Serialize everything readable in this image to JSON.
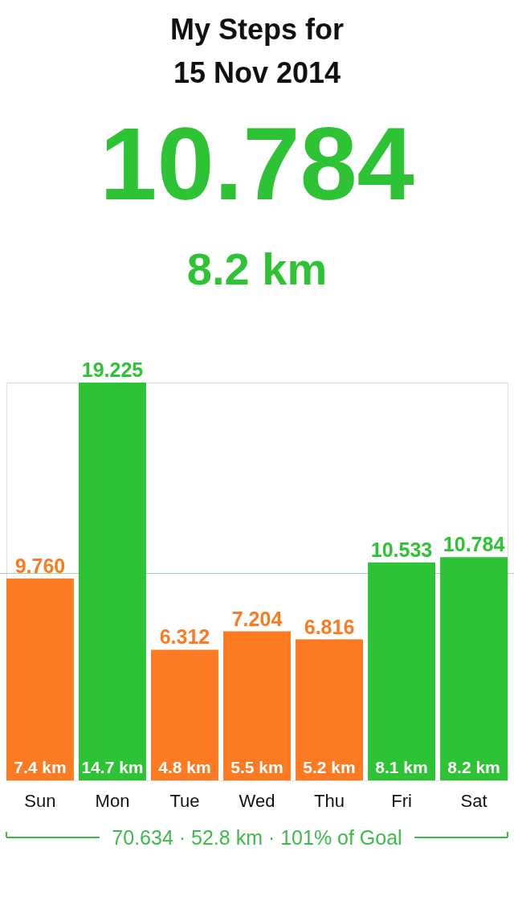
{
  "chart_data": {
    "type": "bar",
    "title": "My Steps for\n15 Nov 2014",
    "subtitle": "10.784",
    "categories": [
      "Sun",
      "Mon",
      "Tue",
      "Wed",
      "Thu",
      "Fri",
      "Sat"
    ],
    "values": [
      9.76,
      19.225,
      6.312,
      7.204,
      6.816,
      10.533,
      10.784
    ],
    "colors": [
      "#fc7a22",
      "#2ec335",
      "#fc7a22",
      "#fc7a22",
      "#fc7a22",
      "#2ec335",
      "#2ec335"
    ],
    "value_labels": [
      "9.760",
      "19.225",
      "6.312",
      "7.204",
      "6.816",
      "10.533",
      "10.784"
    ],
    "ref_lines": [
      {
        "axis": "y",
        "value": 10,
        "color": "#9fd9a6"
      }
    ],
    "annotations": [
      "8.2 km",
      {
        "text": "7.4 km",
        "x": "Sun",
        "y": 0
      },
      {
        "text": "14.7 km",
        "x": "Mon",
        "y": 0
      },
      {
        "text": "4.8 km",
        "x": "Tue",
        "y": 0
      },
      {
        "text": "5.5 km",
        "x": "Wed",
        "y": 0
      },
      {
        "text": "5.2 km",
        "x": "Thu",
        "y": 0
      },
      {
        "text": "8.1 km",
        "x": "Fri",
        "y": 0
      },
      {
        "text": "8.2 km",
        "x": "Sat",
        "y": 0
      },
      "70.634 · 52.8 km · 101% of Goal"
    ],
    "tick_labels": "x"
  }
}
